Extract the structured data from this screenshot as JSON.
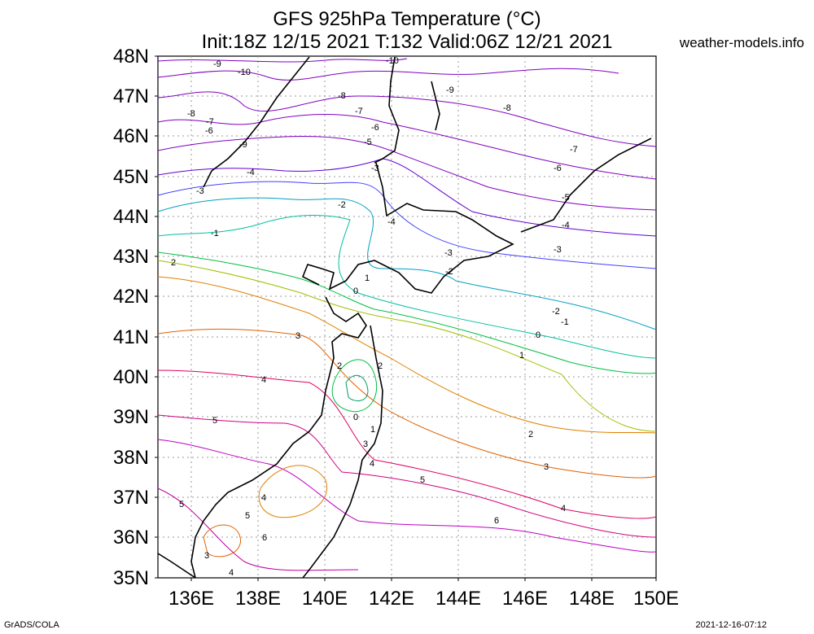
{
  "title": {
    "line1": "GFS 925hPa Temperature (°C)",
    "line2": "Init:18Z 12/15 2021 T:132 Valid:06Z 12/21 2021"
  },
  "site": "weather-models.info",
  "footer": {
    "left": "GrADS/COLA",
    "right": "2021-12-16-07:12"
  },
  "lat_labels": [
    "48N",
    "47N",
    "46N",
    "45N",
    "44N",
    "43N",
    "42N",
    "41N",
    "40N",
    "39N",
    "38N",
    "37N",
    "36N",
    "35N"
  ],
  "lon_labels": [
    "136E",
    "138E",
    "140E",
    "142E",
    "144E",
    "146E",
    "148E",
    "150E"
  ],
  "contour_labels": [
    "-10",
    "-9",
    "-8",
    "-7",
    "-6",
    "-5",
    "-4",
    "-3",
    "-2",
    "-1",
    "0",
    "1",
    "2",
    "3",
    "4",
    "5",
    "6"
  ],
  "colors": {
    "cold": "#8000c0",
    "cool": "#4040ff",
    "cyan": "#00a0c0",
    "green": "#00c040",
    "yellow": "#a0c000",
    "orange": "#e08000",
    "warm": "#e00060",
    "magenta": "#c000c0"
  }
}
